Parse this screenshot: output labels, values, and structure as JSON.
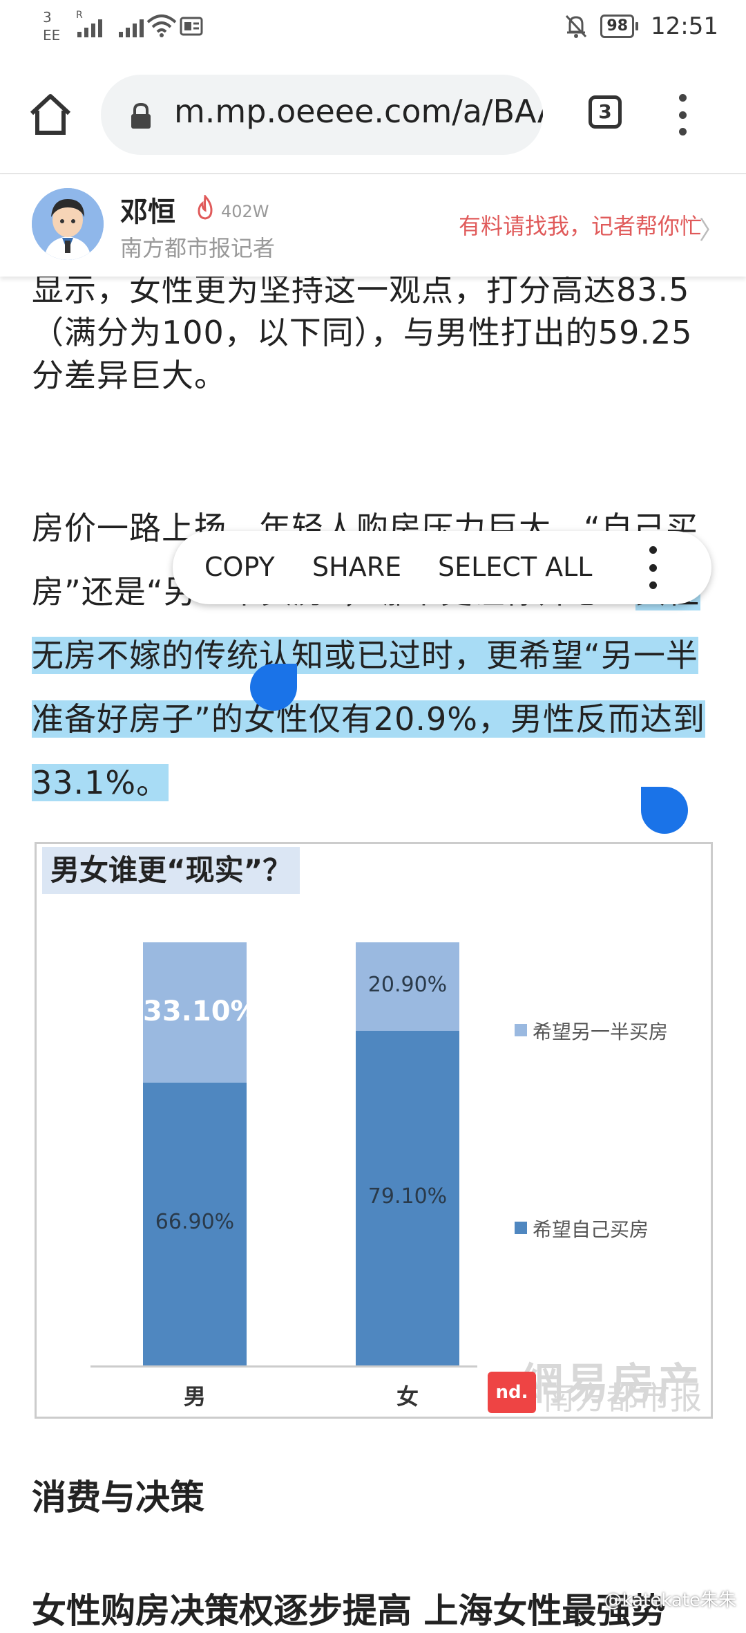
{
  "status_bar": {
    "carrier_top": "3",
    "carrier_bottom": "EE",
    "roaming": "R",
    "battery": "98",
    "time": "12:51"
  },
  "browser": {
    "url": "m.mp.oeeee.com/a/BAA",
    "tab_count": "3"
  },
  "author": {
    "name": "邓恒",
    "fans": "402W",
    "role": "南方都市报记者",
    "cta": "有料请找我，记者帮你忙"
  },
  "article": {
    "para1": "显示，女性更为坚持这一观点，打分高达83.5（满分为100，以下同），与男性打出的59.25分差异巨大。",
    "para2_plain": "房价一路上扬，年轻人购房压力巨大，“自己买房”还是“另一半买房”，哪个更让你开心？",
    "para2_selected": "女性无房不嫁的传统认知或已过时，更希望“另一半准备好房子”的女性仅有20.9%，男性反而达到33.1%。",
    "heading": "消费与决策",
    "subheading": "女性购房决策权逐步提高 上海女性最强势"
  },
  "context_menu": {
    "copy": "COPY",
    "share": "SHARE",
    "select_all": "SELECT ALL"
  },
  "chart_data": {
    "type": "bar",
    "stacked": true,
    "title": "男女谁更“现实”？",
    "categories": [
      "男",
      "女"
    ],
    "series": [
      {
        "name": "希望自己买房",
        "values": [
          66.9,
          79.1
        ],
        "labels": [
          "66.90%",
          "79.10%"
        ],
        "color": "#4f87c0"
      },
      {
        "name": "希望另一半买房",
        "values": [
          33.1,
          20.9
        ],
        "labels": [
          "33.10%",
          "20.90%"
        ],
        "color": "#9ab9e0"
      }
    ],
    "ylim": [
      0,
      100
    ],
    "legend": "right"
  },
  "watermark": {
    "line1": "網易房产",
    "line2": "南方都市报",
    "logo": "nd."
  },
  "credit": "@katekate朱朱"
}
